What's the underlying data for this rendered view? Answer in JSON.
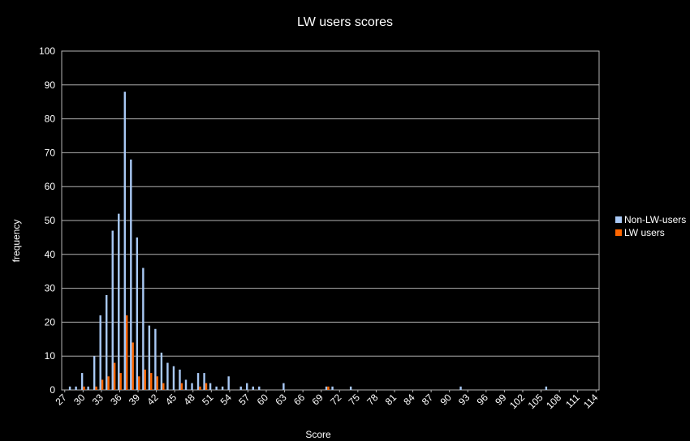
{
  "chart_data": {
    "type": "bar",
    "title": "LW users scores",
    "xlabel": "Score",
    "ylabel": "frequency",
    "ylim": [
      0,
      100
    ],
    "yticks": [
      0,
      10,
      20,
      30,
      40,
      50,
      60,
      70,
      80,
      90,
      100
    ],
    "grid": true,
    "legend_position": "right",
    "x_range": [
      27,
      115
    ],
    "x_tick_labels": [
      "27",
      "30",
      "33",
      "36",
      "39",
      "42",
      "45",
      "48",
      "51",
      "54",
      "57",
      "60",
      "63",
      "66",
      "69",
      "72",
      "75",
      "78",
      "81",
      "84",
      "87",
      "90",
      "93",
      "96",
      "99",
      "102",
      "105",
      "108",
      "111",
      "114"
    ],
    "series": [
      {
        "name": "Non-LW-users",
        "color": "#a9c9f5",
        "points": [
          [
            28,
            1
          ],
          [
            29,
            1
          ],
          [
            30,
            5
          ],
          [
            31,
            1
          ],
          [
            32,
            10
          ],
          [
            33,
            22
          ],
          [
            34,
            28
          ],
          [
            35,
            47
          ],
          [
            36,
            52
          ],
          [
            37,
            88
          ],
          [
            38,
            68
          ],
          [
            39,
            45
          ],
          [
            40,
            36
          ],
          [
            41,
            19
          ],
          [
            42,
            18
          ],
          [
            43,
            11
          ],
          [
            44,
            8
          ],
          [
            45,
            7
          ],
          [
            46,
            6
          ],
          [
            47,
            3
          ],
          [
            48,
            2
          ],
          [
            49,
            5
          ],
          [
            50,
            5
          ],
          [
            51,
            2
          ],
          [
            52,
            1
          ],
          [
            53,
            1
          ],
          [
            54,
            4
          ],
          [
            56,
            1
          ],
          [
            57,
            2
          ],
          [
            58,
            1
          ],
          [
            59,
            1
          ],
          [
            63,
            2
          ],
          [
            70,
            1
          ],
          [
            71,
            1
          ],
          [
            74,
            1
          ],
          [
            92,
            1
          ],
          [
            106,
            1
          ]
        ]
      },
      {
        "name": "LW users",
        "color": "#ff6600",
        "points": [
          [
            30,
            1
          ],
          [
            32,
            1
          ],
          [
            33,
            3
          ],
          [
            34,
            4
          ],
          [
            35,
            8
          ],
          [
            36,
            5
          ],
          [
            37,
            22
          ],
          [
            38,
            14
          ],
          [
            39,
            4
          ],
          [
            40,
            6
          ],
          [
            41,
            5
          ],
          [
            42,
            4
          ],
          [
            43,
            2
          ],
          [
            46,
            2
          ],
          [
            49,
            1
          ],
          [
            50,
            2
          ],
          [
            70,
            1
          ]
        ]
      }
    ]
  }
}
